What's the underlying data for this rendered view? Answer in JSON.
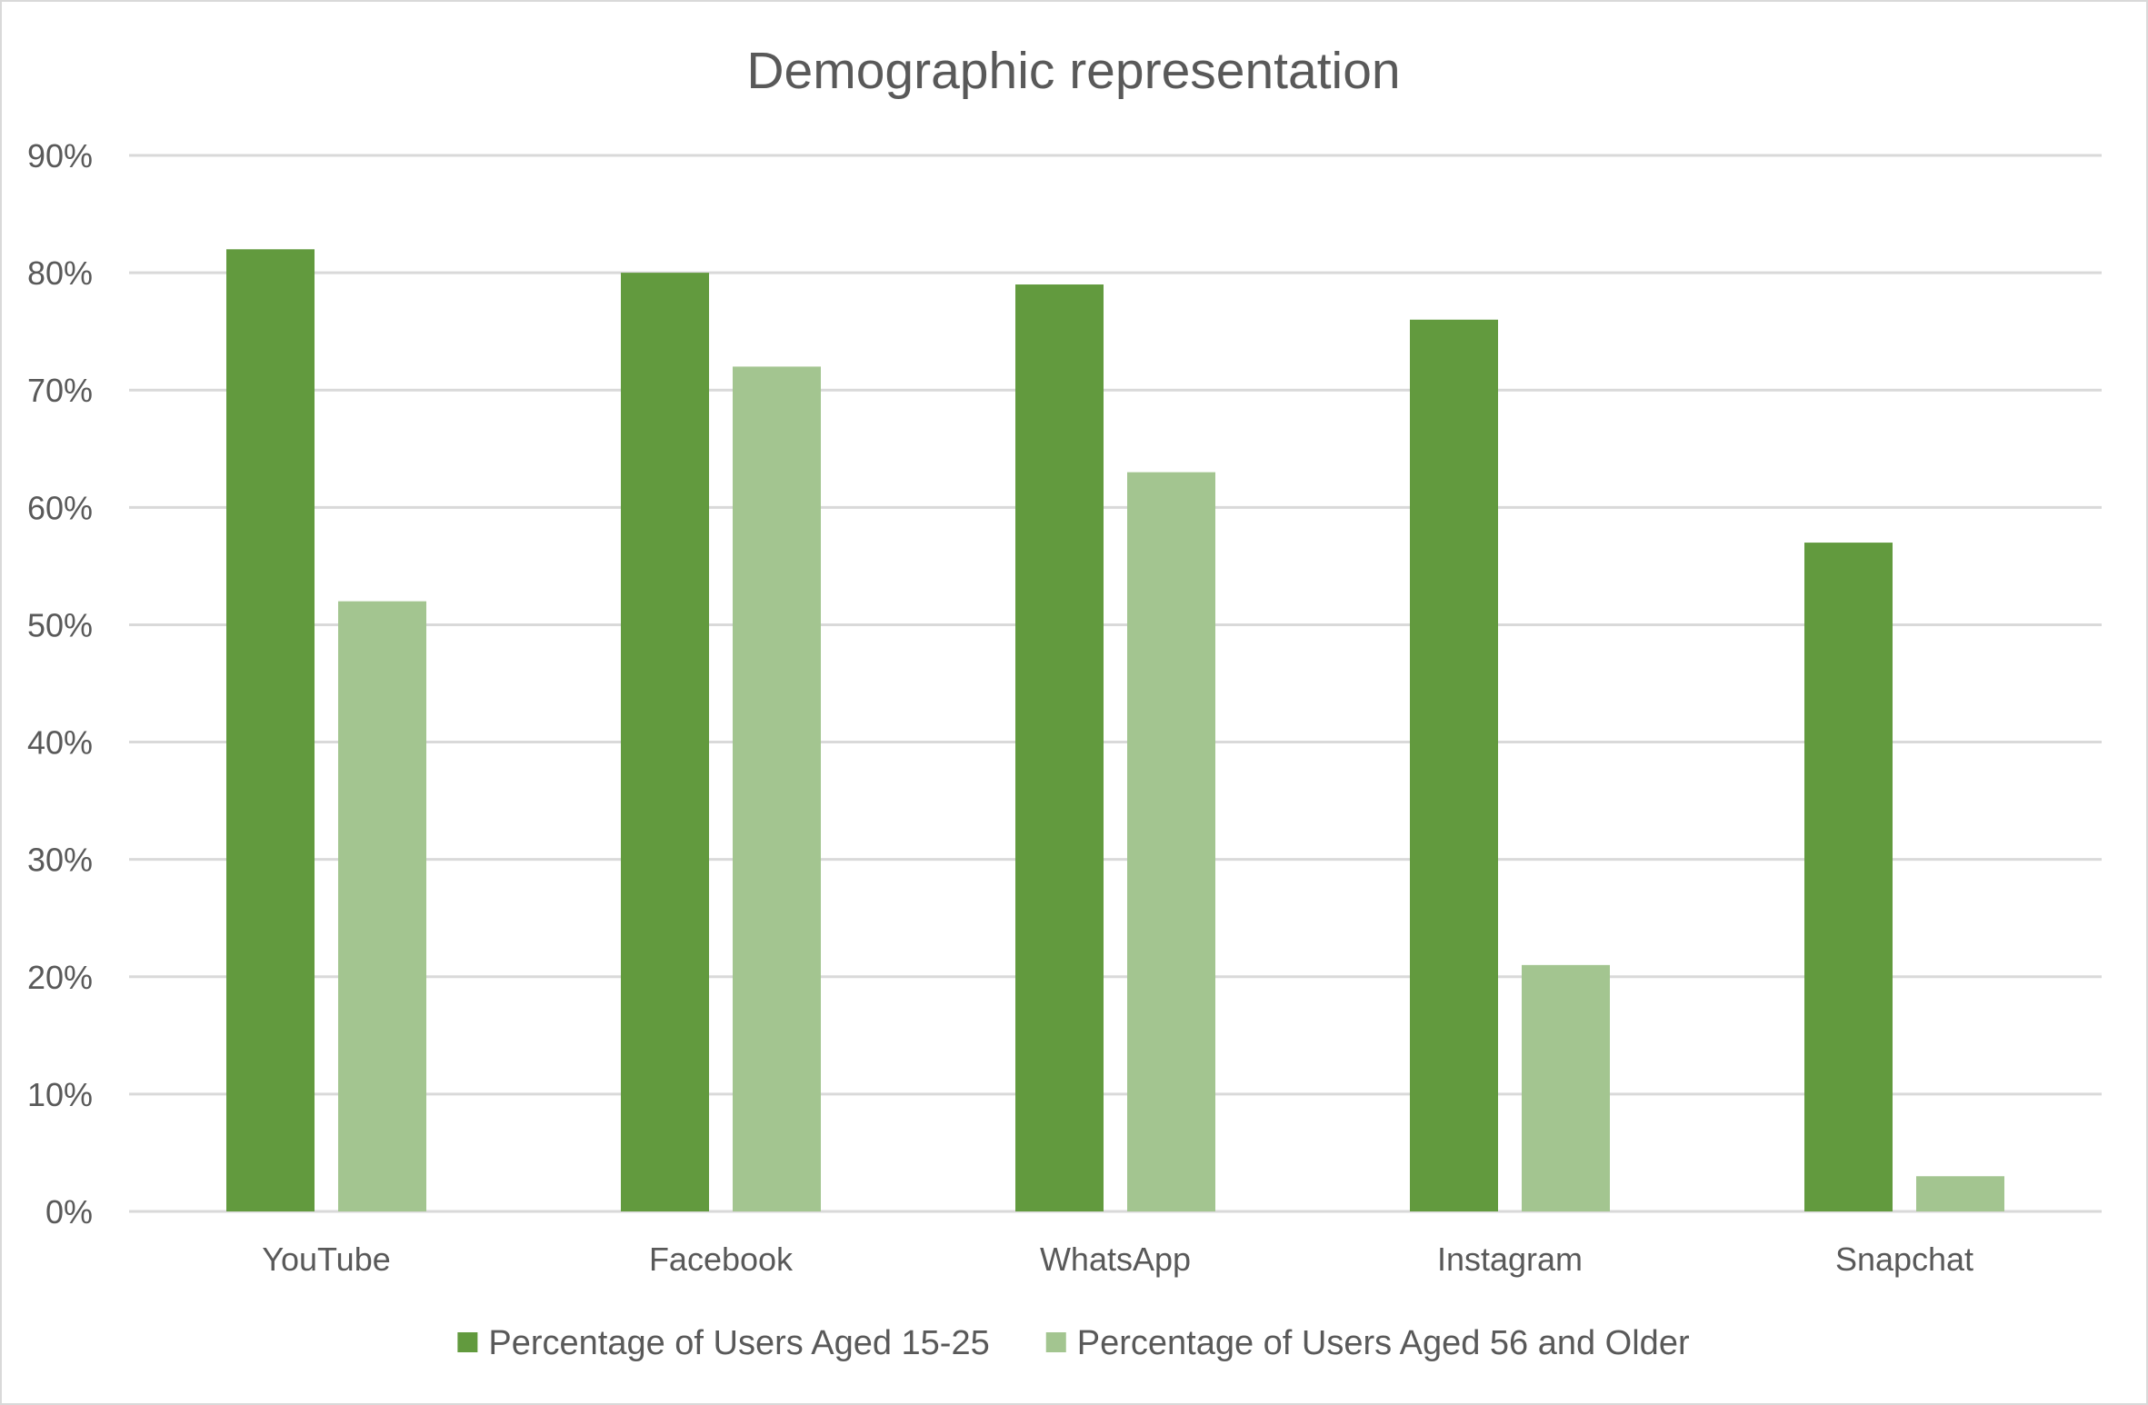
{
  "chart_data": {
    "type": "bar",
    "title": "Demographic representation",
    "xlabel": "",
    "ylabel": "",
    "categories": [
      "YouTube",
      "Facebook",
      "WhatsApp",
      "Instagram",
      "Snapchat"
    ],
    "series": [
      {
        "name": "Percentage of Users Aged 15-25",
        "color": "#629a3e",
        "values": [
          82,
          80,
          79,
          76,
          57
        ]
      },
      {
        "name": "Percentage of Users Aged 56 and Older",
        "color": "#a3c590",
        "values": [
          52,
          72,
          63,
          21,
          3
        ]
      }
    ],
    "ylim": [
      0,
      90
    ],
    "yticks": [
      "0%",
      "10%",
      "20%",
      "30%",
      "40%",
      "50%",
      "60%",
      "70%",
      "80%",
      "90%"
    ],
    "grid": true,
    "legend_position": "bottom"
  }
}
